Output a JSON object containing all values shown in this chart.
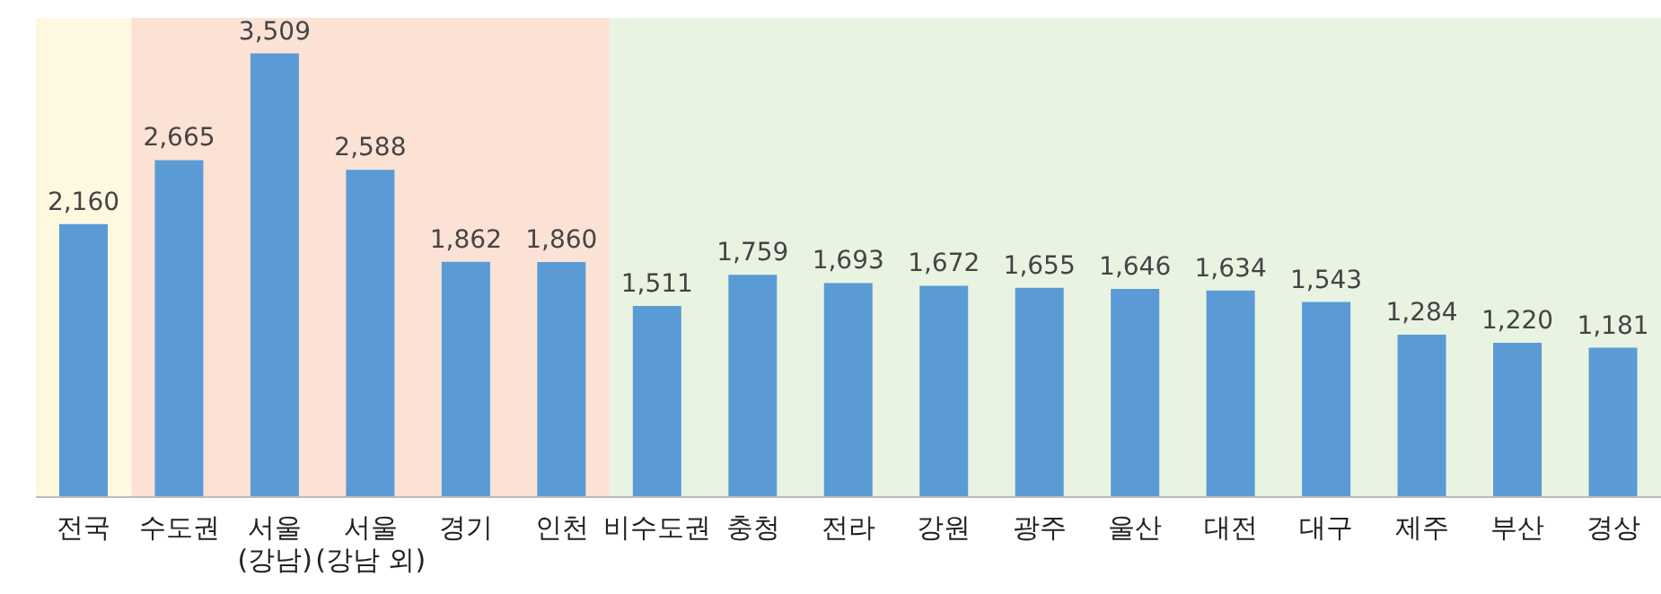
{
  "chart_data": {
    "type": "bar",
    "categories": [
      "전국",
      "수도권",
      "서울\n(강남)",
      "서울\n(강남 외)",
      "경기",
      "인천",
      "비수도권",
      "충청",
      "전라",
      "강원",
      "광주",
      "울산",
      "대전",
      "대구",
      "제주",
      "부산",
      "경상"
    ],
    "values": [
      2160,
      2665,
      3509,
      2588,
      1862,
      1860,
      1511,
      1759,
      1693,
      1672,
      1655,
      1646,
      1634,
      1543,
      1284,
      1220,
      1181
    ],
    "color": "#5b9bd5",
    "value_labels": [
      "2,160",
      "2,665",
      "3,509",
      "2,588",
      "1,862",
      "1,860",
      "1,511",
      "1,759",
      "1,693",
      "1,672",
      "1,655",
      "1,646",
      "1,634",
      "1,543",
      "1,284",
      "1,220",
      "1,181"
    ],
    "bands": [
      {
        "axis": "x",
        "from": "전국",
        "to": "전국",
        "color": "#fff8e1"
      },
      {
        "axis": "x",
        "from": "수도권",
        "to": "인천",
        "color": "#fbe2d5"
      },
      {
        "axis": "x",
        "from": "비수도권",
        "to": "경상",
        "color": "#e9f3e1"
      }
    ]
  }
}
